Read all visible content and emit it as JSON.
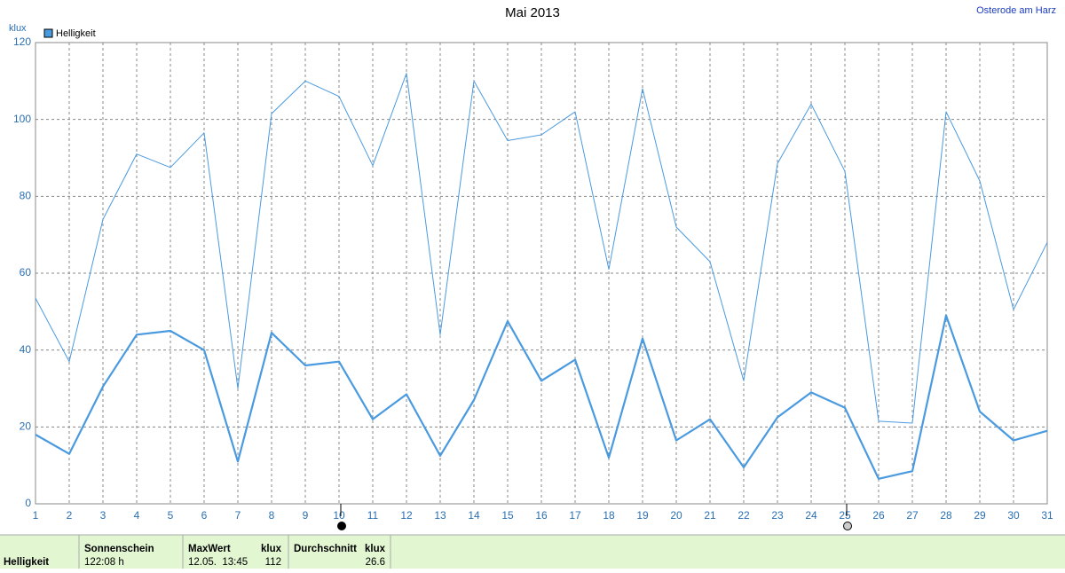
{
  "chart_data": {
    "type": "line",
    "title": "Mai 2013",
    "location": "Osterode am Harz",
    "y_label": "klux",
    "categories": [
      1,
      2,
      3,
      4,
      5,
      6,
      7,
      8,
      9,
      10,
      11,
      12,
      13,
      14,
      15,
      16,
      17,
      18,
      19,
      20,
      21,
      22,
      23,
      24,
      25,
      26,
      27,
      28,
      29,
      30,
      31
    ],
    "series": [
      {
        "name": "Helligkeit",
        "color": "#4a9ae0",
        "width": 2.2,
        "values": [
          18,
          13,
          30.5,
          44,
          45,
          40,
          11,
          44.5,
          36,
          37,
          22,
          28.5,
          12.5,
          27,
          47.5,
          32,
          37.5,
          12,
          43,
          16.5,
          22,
          9.5,
          22.5,
          29,
          25,
          6.5,
          8.5,
          49,
          24,
          16.5,
          19
        ]
      },
      {
        "color": "#4a9ae0",
        "width": 1,
        "values": [
          53.5,
          37,
          74,
          91,
          87.5,
          96.5,
          30,
          101.5,
          110,
          106,
          88,
          112,
          44,
          110,
          94.5,
          96,
          102,
          61,
          108,
          72,
          63,
          32,
          88.5,
          104,
          86.5,
          21.5,
          21,
          102,
          84,
          50.5,
          68
        ]
      }
    ],
    "ylim": [
      0,
      120
    ],
    "yticks": [
      0,
      20,
      40,
      60,
      80,
      100,
      120
    ],
    "grid": true
  },
  "table": {
    "header": [
      "Sonnenschein",
      "MaxWert",
      "klux",
      "Durchschnitt",
      "klux"
    ],
    "row": [
      "Helligkeit",
      "122:08 h",
      "12.05.  13:45",
      "112",
      "26.6"
    ]
  }
}
